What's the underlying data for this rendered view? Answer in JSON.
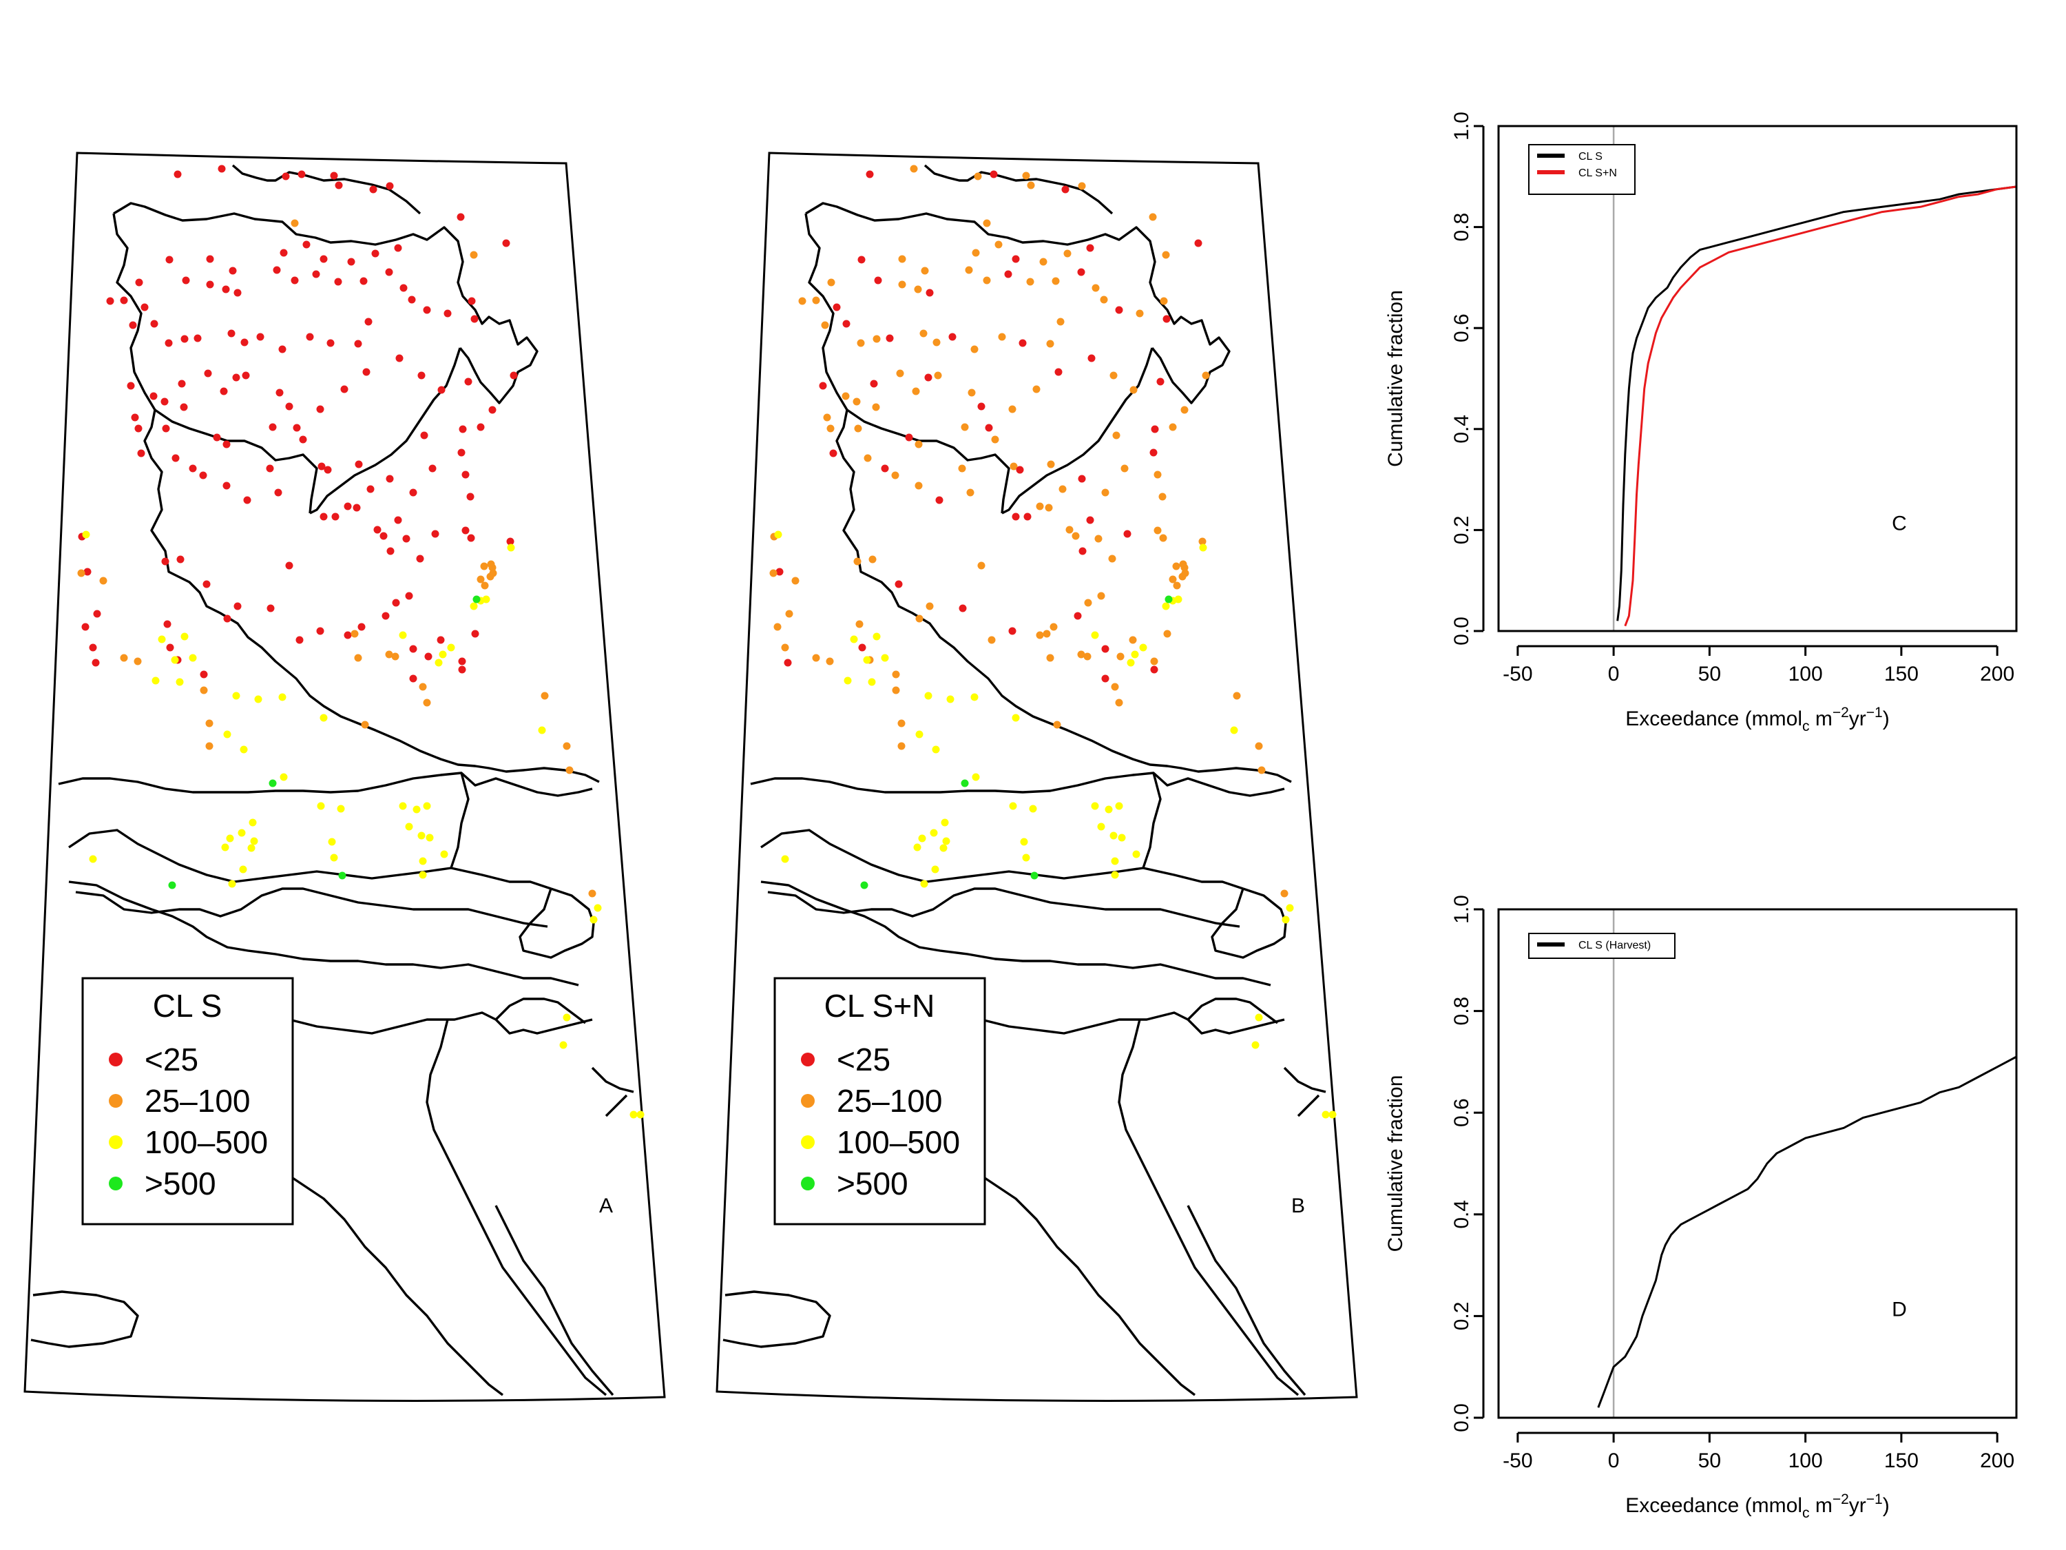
{
  "colors": {
    "lt25": "#e8191c",
    "c25_100": "#f7941d",
    "c100_500": "#ffff00",
    "gt500": "#1de81d",
    "cl_s_line": "#000000",
    "cl_sn_line": "#e8191c",
    "zero_line": "#aaaaaa"
  },
  "maps": [
    {
      "panel_label": "A",
      "legend_title": "CL S",
      "legend_items": [
        "<25",
        "25–100",
        "100–500",
        ">500"
      ]
    },
    {
      "panel_label": "B",
      "legend_title": "CL S+N",
      "legend_items": [
        "<25",
        "25–100",
        "100–500",
        ">500"
      ]
    }
  ],
  "chart_data": [
    {
      "type": "line",
      "panel_label": "C",
      "xlabel": "Exceedance (mmol",
      "xlabel_sub": "c",
      "xlabel_mid": " m",
      "xlabel_sup1": "−2",
      "xlabel_mid2": "yr",
      "xlabel_sup2": "−1",
      "xlabel_end": ")",
      "ylabel": "Cumulative fraction",
      "xlim": [
        -60,
        210
      ],
      "ylim": [
        0,
        1.0
      ],
      "xticks": [
        -50,
        0,
        50,
        100,
        150,
        200
      ],
      "yticks": [
        "0.0",
        "0.2",
        "0.4",
        "0.6",
        "0.8",
        "1.0"
      ],
      "legend_position": "top-left",
      "series": [
        {
          "name": "CL S",
          "color": "#000000",
          "x": [
            2,
            3,
            4,
            5,
            6,
            7,
            8,
            9,
            10,
            12,
            14,
            16,
            18,
            20,
            22,
            25,
            28,
            31,
            35,
            40,
            45,
            50,
            60,
            70,
            80,
            90,
            100,
            110,
            120,
            130,
            140,
            150,
            160,
            170,
            180,
            190,
            200,
            210
          ],
          "y": [
            0.02,
            0.05,
            0.12,
            0.25,
            0.35,
            0.42,
            0.48,
            0.52,
            0.55,
            0.58,
            0.6,
            0.62,
            0.64,
            0.65,
            0.66,
            0.67,
            0.68,
            0.7,
            0.72,
            0.74,
            0.755,
            0.76,
            0.77,
            0.78,
            0.79,
            0.8,
            0.81,
            0.82,
            0.83,
            0.835,
            0.84,
            0.845,
            0.85,
            0.855,
            0.865,
            0.87,
            0.875,
            0.88
          ]
        },
        {
          "name": "CL S+N",
          "color": "#e8191c",
          "x": [
            6,
            8,
            10,
            11,
            12,
            13,
            14,
            15,
            16,
            18,
            20,
            22,
            25,
            28,
            31,
            35,
            40,
            45,
            50,
            60,
            70,
            80,
            90,
            100,
            110,
            120,
            130,
            140,
            150,
            160,
            170,
            180,
            190,
            200,
            210
          ],
          "y": [
            0.01,
            0.03,
            0.1,
            0.18,
            0.27,
            0.33,
            0.38,
            0.43,
            0.48,
            0.53,
            0.56,
            0.59,
            0.62,
            0.64,
            0.66,
            0.68,
            0.7,
            0.72,
            0.73,
            0.75,
            0.76,
            0.77,
            0.78,
            0.79,
            0.8,
            0.81,
            0.82,
            0.83,
            0.835,
            0.84,
            0.85,
            0.86,
            0.865,
            0.875,
            0.88
          ]
        }
      ]
    },
    {
      "type": "line",
      "panel_label": "D",
      "xlabel": "Exceedance (mmol",
      "xlabel_sub": "c",
      "xlabel_mid": " m",
      "xlabel_sup1": "−2",
      "xlabel_mid2": "yr",
      "xlabel_sup2": "−1",
      "xlabel_end": ")",
      "ylabel": "Cumulative fraction",
      "xlim": [
        -60,
        210
      ],
      "ylim": [
        0,
        1.0
      ],
      "xticks": [
        -50,
        0,
        50,
        100,
        150,
        200
      ],
      "yticks": [
        "0.0",
        "0.2",
        "0.4",
        "0.6",
        "0.8",
        "1.0"
      ],
      "legend_position": "top-left",
      "series": [
        {
          "name": "CL S (Harvest)",
          "color": "#000000",
          "x": [
            -8,
            -5,
            -2,
            0,
            3,
            6,
            9,
            12,
            15,
            18,
            20,
            22,
            25,
            27,
            30,
            35,
            40,
            45,
            50,
            55,
            60,
            65,
            70,
            75,
            80,
            85,
            90,
            95,
            100,
            110,
            120,
            130,
            140,
            150,
            160,
            170,
            180,
            190,
            200,
            210
          ],
          "y": [
            0.02,
            0.05,
            0.08,
            0.1,
            0.11,
            0.12,
            0.14,
            0.16,
            0.2,
            0.23,
            0.25,
            0.27,
            0.32,
            0.34,
            0.36,
            0.38,
            0.39,
            0.4,
            0.41,
            0.42,
            0.43,
            0.44,
            0.45,
            0.47,
            0.5,
            0.52,
            0.53,
            0.54,
            0.55,
            0.56,
            0.57,
            0.59,
            0.6,
            0.61,
            0.62,
            0.64,
            0.65,
            0.67,
            0.69,
            0.71
          ]
        }
      ]
    }
  ]
}
